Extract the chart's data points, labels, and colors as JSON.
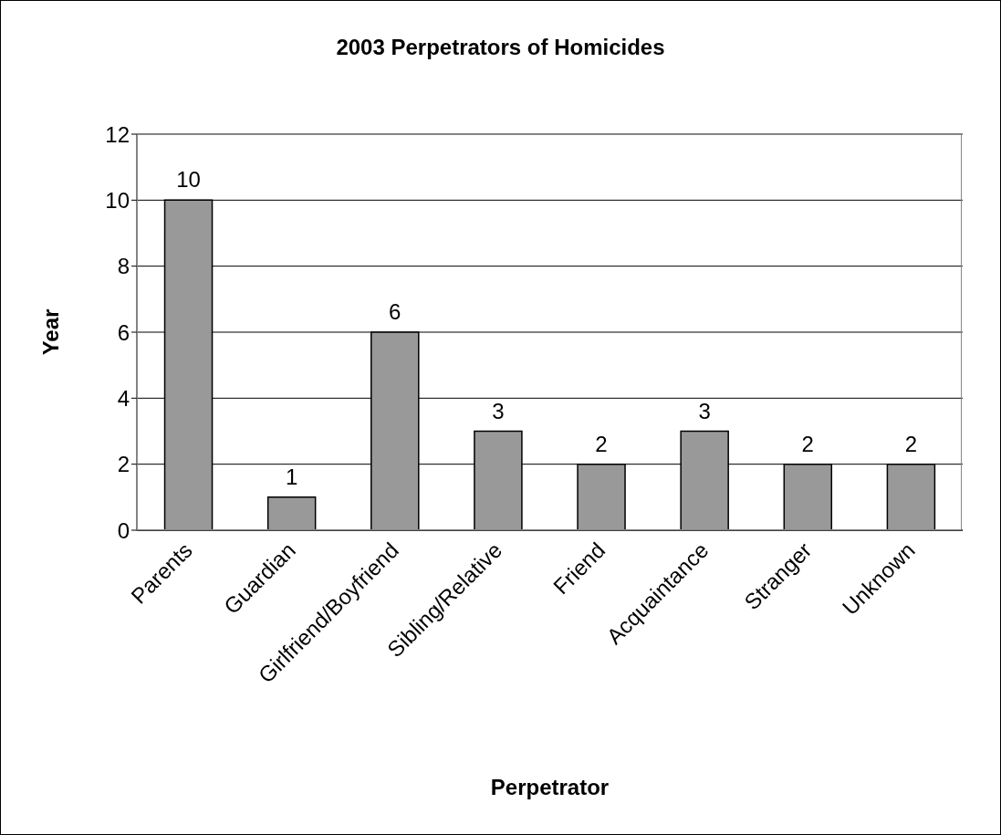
{
  "chart_data": {
    "type": "bar",
    "title": "2003 Perpetrators of Homicides",
    "xlabel": "Perpetrator",
    "ylabel": "Year",
    "categories": [
      "Parents",
      "Guardian",
      "Girlfriend/Boyfriend",
      "Sibling/Relative",
      "Friend",
      "Acquaintance",
      "Stranger",
      "Unknown"
    ],
    "values": [
      10,
      1,
      6,
      3,
      2,
      3,
      2,
      2
    ],
    "color": "#999999",
    "ylim": [
      0,
      12
    ],
    "yticks": [
      0,
      2,
      4,
      6,
      8,
      10,
      12
    ],
    "grid": "y",
    "data_labels": true,
    "legend": false
  }
}
